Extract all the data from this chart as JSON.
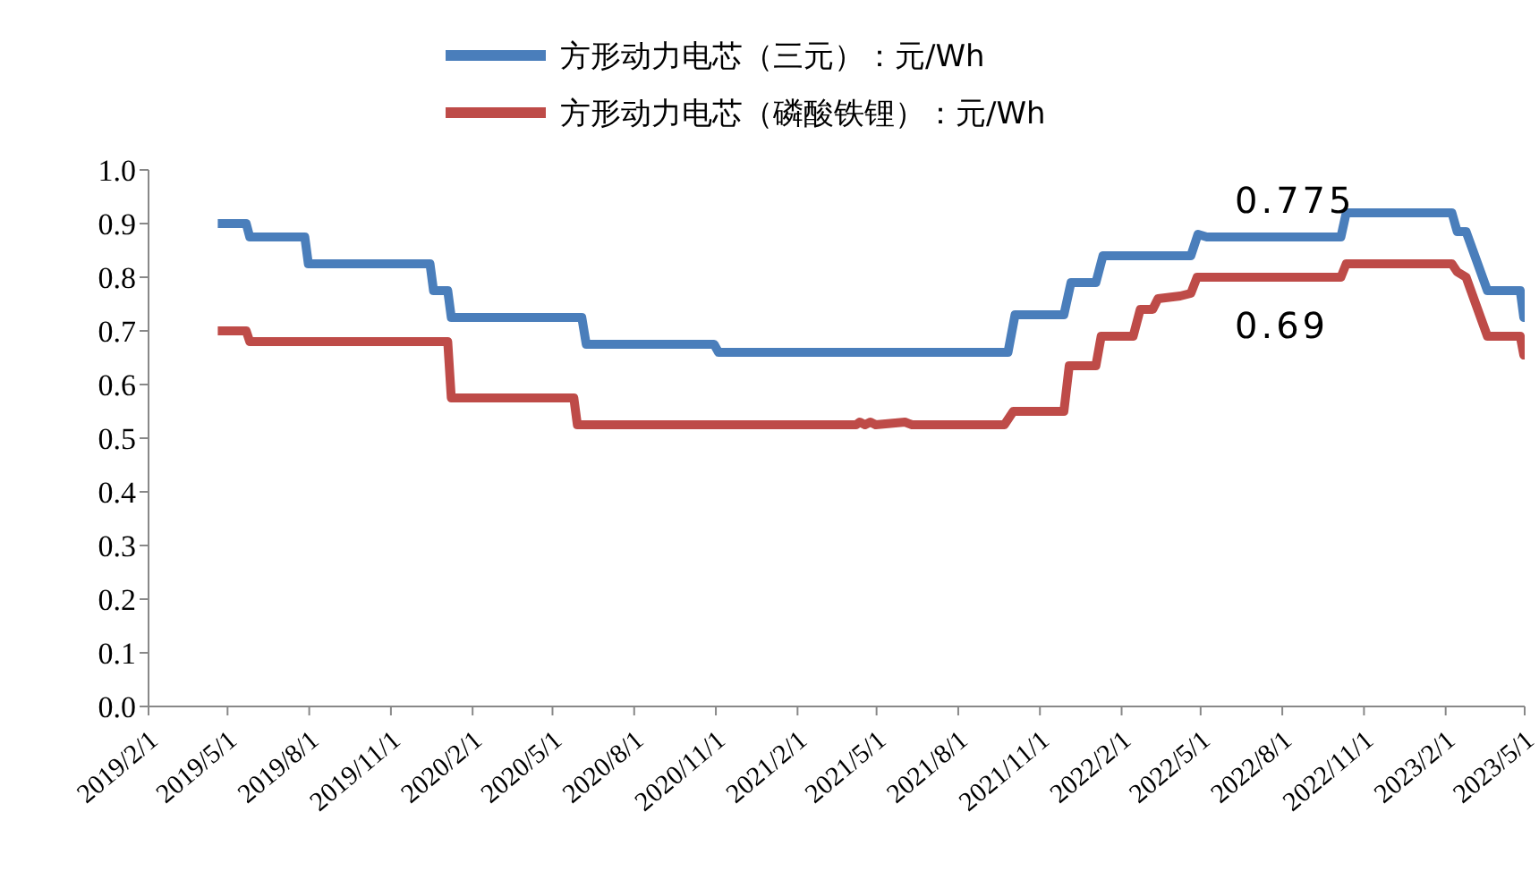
{
  "chart_data": {
    "type": "line",
    "legend": "top",
    "marker": "none",
    "line_style": "solid",
    "grid": false,
    "xlim": [
      "2019-02-01",
      "2023-05-01"
    ],
    "xticks": [
      {
        "value": "2019-02-01",
        "label": "2019/2/1"
      },
      {
        "value": "2019-05-01",
        "label": "2019/5/1"
      },
      {
        "value": "2019-08-01",
        "label": "2019/8/1"
      },
      {
        "value": "2019-11-01",
        "label": "2019/11/1"
      },
      {
        "value": "2020-02-01",
        "label": "2020/2/1"
      },
      {
        "value": "2020-05-01",
        "label": "2020/5/1"
      },
      {
        "value": "2020-08-01",
        "label": "2020/8/1"
      },
      {
        "value": "2020-11-01",
        "label": "2020/11/1"
      },
      {
        "value": "2021-02-01",
        "label": "2021/2/1"
      },
      {
        "value": "2021-05-01",
        "label": "2021/5/1"
      },
      {
        "value": "2021-08-01",
        "label": "2021/8/1"
      },
      {
        "value": "2021-11-01",
        "label": "2021/11/1"
      },
      {
        "value": "2022-02-01",
        "label": "2022/2/1"
      },
      {
        "value": "2022-05-01",
        "label": "2022/5/1"
      },
      {
        "value": "2022-08-01",
        "label": "2022/8/1"
      },
      {
        "value": "2022-11-01",
        "label": "2022/11/1"
      },
      {
        "value": "2023-02-01",
        "label": "2023/2/1"
      },
      {
        "value": "2023-05-01",
        "label": "2023/5/1"
      }
    ],
    "ylim": [
      0,
      1
    ],
    "yticks": [
      {
        "value": 0,
        "label": "0.0"
      },
      0.1,
      0.2,
      0.3,
      0.4,
      0.5,
      0.6,
      0.7,
      0.8,
      0.9,
      {
        "value": 1,
        "label": "1.0"
      }
    ],
    "annotations": [
      "0.775",
      "0.69"
    ],
    "series": [
      {
        "name": "方形动力电芯（三元）：元/Wh",
        "color": "#4a7ebb",
        "x": [
          "2019-04-20",
          "2019-05-22",
          "2019-05-26",
          "2019-07-27",
          "2019-07-31",
          "2019-12-15",
          "2019-12-19",
          "2020-01-04",
          "2020-01-08",
          "2020-06-03",
          "2020-06-08",
          "2020-10-30",
          "2020-11-04",
          "2021-09-26",
          "2021-10-04",
          "2021-11-28",
          "2021-12-06",
          "2022-01-03",
          "2022-01-11",
          "2022-04-20",
          "2022-04-28",
          "2022-05-08",
          "2022-10-06",
          "2022-10-12",
          "2023-02-08",
          "2023-02-14",
          "2023-02-24",
          "2023-03-20",
          "2023-04-26",
          "2023-04-30",
          "2023-05-01"
        ],
        "values": [
          0.9,
          0.9,
          0.875,
          0.875,
          0.825,
          0.825,
          0.775,
          0.775,
          0.725,
          0.725,
          0.675,
          0.675,
          0.66,
          0.66,
          0.73,
          0.73,
          0.79,
          0.79,
          0.84,
          0.84,
          0.88,
          0.875,
          0.875,
          0.92,
          0.92,
          0.885,
          0.885,
          0.775,
          0.775,
          0.725,
          0.775
        ]
      },
      {
        "name": "方形动力电芯（磷酸铁锂）：元/Wh",
        "color": "#be4b48",
        "x": [
          "2019-04-20",
          "2019-05-22",
          "2019-05-26",
          "2020-01-04",
          "2020-01-08",
          "2020-05-25",
          "2020-05-29",
          "2021-04-08",
          "2021-04-12",
          "2021-04-18",
          "2021-04-24",
          "2021-04-30",
          "2021-06-02",
          "2021-06-10",
          "2021-09-22",
          "2021-10-02",
          "2021-11-28",
          "2021-12-04",
          "2022-01-03",
          "2022-01-09",
          "2022-02-14",
          "2022-02-22",
          "2022-03-08",
          "2022-03-14",
          "2022-04-08",
          "2022-04-20",
          "2022-04-27",
          "2022-10-06",
          "2022-10-12",
          "2023-02-08",
          "2023-02-14",
          "2023-02-24",
          "2023-03-20",
          "2023-04-26",
          "2023-04-30",
          "2023-05-01"
        ],
        "values": [
          0.7,
          0.7,
          0.68,
          0.68,
          0.575,
          0.575,
          0.525,
          0.525,
          0.53,
          0.525,
          0.53,
          0.525,
          0.53,
          0.525,
          0.525,
          0.55,
          0.55,
          0.635,
          0.635,
          0.69,
          0.69,
          0.74,
          0.74,
          0.76,
          0.765,
          0.77,
          0.8,
          0.8,
          0.825,
          0.825,
          0.81,
          0.8,
          0.69,
          0.69,
          0.655,
          0.69
        ]
      }
    ]
  }
}
